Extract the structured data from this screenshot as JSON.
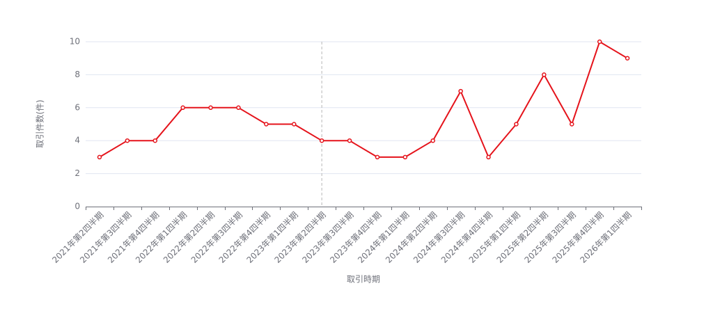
{
  "chart_data": {
    "type": "line",
    "x_label": "取引時期",
    "y_label": "取引件数(件)",
    "categories": [
      "2021年第2四半期",
      "2021年第3四半期",
      "2021年第4四半期",
      "2022年第1四半期",
      "2022年第2四半期",
      "2022年第3四半期",
      "2022年第4四半期",
      "2023年第1四半期",
      "2023年第2四半期",
      "2023年第3四半期",
      "2023年第4四半期",
      "2024年第1四半期",
      "2024年第2四半期",
      "2024年第3四半期",
      "2024年第4四半期",
      "2025年第1四半期",
      "2025年第2四半期",
      "2025年第3四半期",
      "2025年第4四半期",
      "2026年第1四半期"
    ],
    "values": [
      3,
      4,
      4,
      6,
      6,
      6,
      5,
      5,
      4,
      4,
      3,
      3,
      4,
      7,
      3,
      5,
      8,
      5,
      10,
      9
    ],
    "color": "#e5131b",
    "ylim": [
      0,
      10
    ],
    "yticks": [
      0,
      2,
      4,
      6,
      8,
      10
    ],
    "grid": true
  }
}
